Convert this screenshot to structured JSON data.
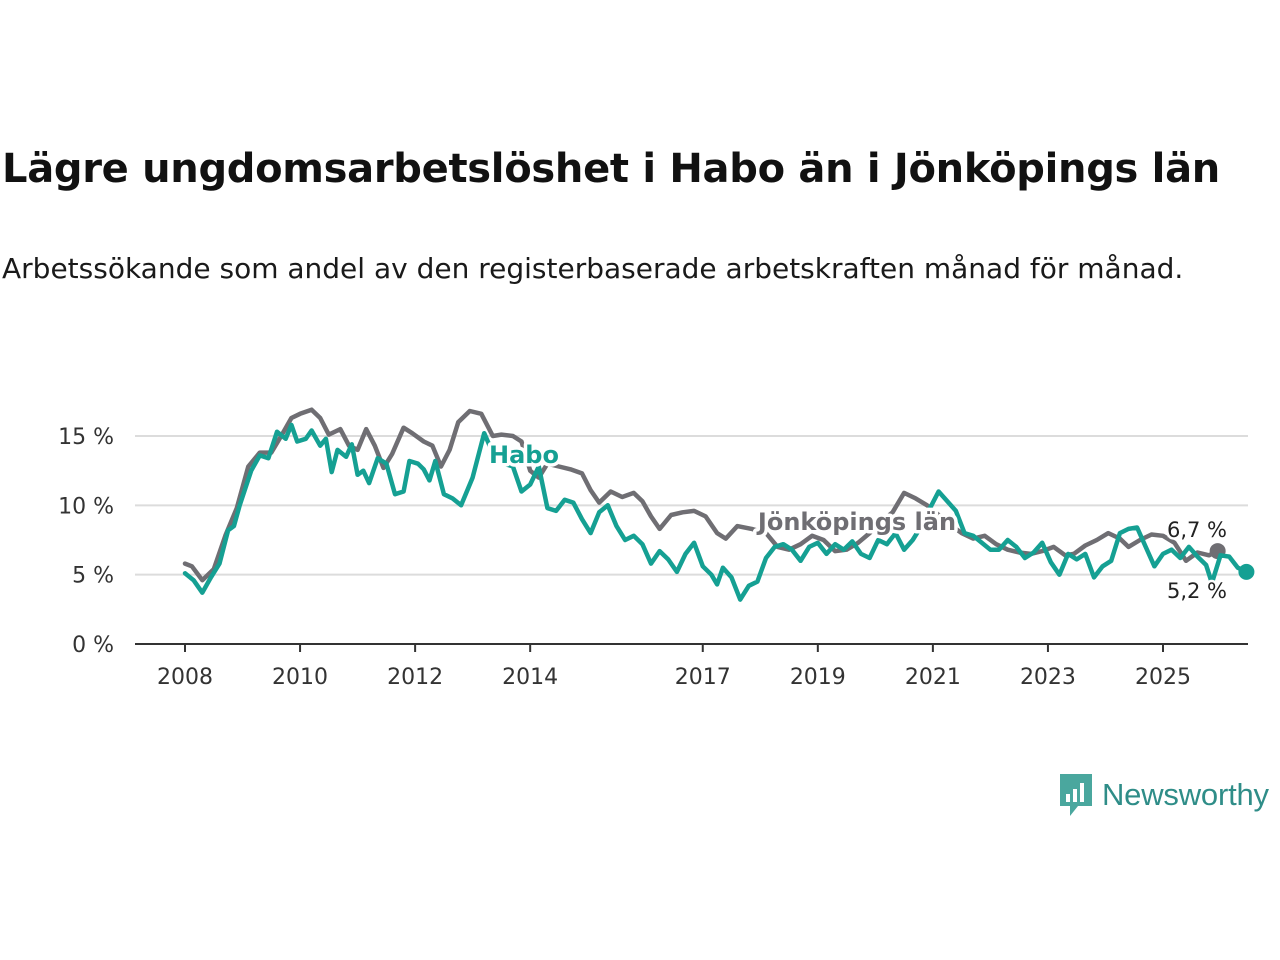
{
  "header": {
    "title": "Lägre ungdomsarbetslöshet i Habo än i Jönköpings län",
    "subtitle": "Arbetssökande som andel av den registerbaserade arbetskraften månad för månad."
  },
  "brand": {
    "name": "Newsworthy",
    "color": "#2f8d88"
  },
  "chart_data": {
    "type": "line",
    "title": "Lägre ungdomsarbetslöshet i Habo än i Jönköpings län",
    "subtitle": "Arbetssökande som andel av den registerbaserade arbetskraften månad för månad.",
    "xlabel": "",
    "ylabel": "",
    "ylim": [
      0,
      17
    ],
    "xlim": [
      2008.0,
      2026.1
    ],
    "grid": true,
    "yticks": [
      0,
      5,
      10,
      15
    ],
    "ytick_labels": [
      "0 %",
      "5 %",
      "10 %",
      "15 %"
    ],
    "xticks": [
      2008,
      2010,
      2012,
      2014,
      2017,
      2019,
      2021,
      2023,
      2025
    ],
    "xtick_labels": [
      "2008",
      "2010",
      "2012",
      "2014",
      "2017",
      "2019",
      "2021",
      "2023",
      "2025"
    ],
    "series": [
      {
        "name": "Jönköpings län",
        "color": "#6f6e73",
        "end_label": "6,7 %",
        "points": [
          [
            2008.0,
            5.8
          ],
          [
            2008.12,
            5.6
          ],
          [
            2008.3,
            4.6
          ],
          [
            2008.5,
            5.4
          ],
          [
            2008.7,
            7.8
          ],
          [
            2008.9,
            9.8
          ],
          [
            2009.1,
            12.8
          ],
          [
            2009.3,
            13.8
          ],
          [
            2009.5,
            13.8
          ],
          [
            2009.7,
            15.2
          ],
          [
            2009.85,
            16.3
          ],
          [
            2010.0,
            16.6
          ],
          [
            2010.2,
            16.9
          ],
          [
            2010.35,
            16.3
          ],
          [
            2010.5,
            15.1
          ],
          [
            2010.7,
            15.5
          ],
          [
            2010.85,
            14.3
          ],
          [
            2011.0,
            14.0
          ],
          [
            2011.15,
            15.5
          ],
          [
            2011.3,
            14.3
          ],
          [
            2011.45,
            12.7
          ],
          [
            2011.6,
            13.7
          ],
          [
            2011.8,
            15.6
          ],
          [
            2011.95,
            15.2
          ],
          [
            2012.15,
            14.6
          ],
          [
            2012.3,
            14.3
          ],
          [
            2012.45,
            12.8
          ],
          [
            2012.6,
            14.0
          ],
          [
            2012.75,
            16.0
          ],
          [
            2012.95,
            16.8
          ],
          [
            2013.15,
            16.6
          ],
          [
            2013.35,
            15.0
          ],
          [
            2013.5,
            15.1
          ],
          [
            2013.7,
            15.0
          ],
          [
            2013.85,
            14.6
          ],
          [
            2014.0,
            12.5
          ],
          [
            2014.15,
            12.0
          ],
          [
            2014.3,
            13.0
          ],
          [
            2014.5,
            12.8
          ],
          [
            2014.7,
            12.6
          ],
          [
            2014.9,
            12.3
          ],
          [
            2015.05,
            11.1
          ],
          [
            2015.2,
            10.2
          ],
          [
            2015.4,
            11.0
          ],
          [
            2015.6,
            10.6
          ],
          [
            2015.8,
            10.9
          ],
          [
            2015.95,
            10.3
          ],
          [
            2016.1,
            9.2
          ],
          [
            2016.25,
            8.3
          ],
          [
            2016.45,
            9.3
          ],
          [
            2016.65,
            9.5
          ],
          [
            2016.85,
            9.6
          ],
          [
            2017.05,
            9.2
          ],
          [
            2017.25,
            8.0
          ],
          [
            2017.4,
            7.6
          ],
          [
            2017.6,
            8.5
          ],
          [
            2017.85,
            8.3
          ],
          [
            2018.1,
            8.0
          ],
          [
            2018.3,
            7.0
          ],
          [
            2018.5,
            6.8
          ],
          [
            2018.7,
            7.2
          ],
          [
            2018.9,
            7.8
          ],
          [
            2019.1,
            7.5
          ],
          [
            2019.3,
            6.7
          ],
          [
            2019.5,
            6.8
          ],
          [
            2019.7,
            7.3
          ],
          [
            2019.9,
            8.0
          ],
          [
            2020.1,
            8.8
          ],
          [
            2020.3,
            9.5
          ],
          [
            2020.5,
            10.9
          ],
          [
            2020.7,
            10.5
          ],
          [
            2020.9,
            10.0
          ],
          [
            2021.1,
            9.3
          ],
          [
            2021.3,
            8.6
          ],
          [
            2021.5,
            8.0
          ],
          [
            2021.7,
            7.6
          ],
          [
            2021.9,
            7.8
          ],
          [
            2022.1,
            7.2
          ],
          [
            2022.3,
            6.8
          ],
          [
            2022.5,
            6.6
          ],
          [
            2022.7,
            6.5
          ],
          [
            2022.9,
            6.7
          ],
          [
            2023.1,
            7.0
          ],
          [
            2023.3,
            6.4
          ],
          [
            2023.45,
            6.5
          ],
          [
            2023.65,
            7.1
          ],
          [
            2023.85,
            7.5
          ],
          [
            2024.05,
            8.0
          ],
          [
            2024.25,
            7.6
          ],
          [
            2024.4,
            7.0
          ],
          [
            2024.6,
            7.5
          ],
          [
            2024.8,
            7.9
          ],
          [
            2025.0,
            7.8
          ],
          [
            2025.2,
            7.3
          ],
          [
            2025.4,
            6.0
          ],
          [
            2025.6,
            6.6
          ],
          [
            2025.8,
            6.4
          ],
          [
            2025.95,
            6.7
          ]
        ]
      },
      {
        "name": "Habo",
        "color": "#15a093",
        "end_label": "5,2 %",
        "points": [
          [
            2008.0,
            5.1
          ],
          [
            2008.15,
            4.6
          ],
          [
            2008.3,
            3.7
          ],
          [
            2008.45,
            4.8
          ],
          [
            2008.6,
            5.8
          ],
          [
            2008.75,
            8.2
          ],
          [
            2008.85,
            8.5
          ],
          [
            2008.95,
            10.0
          ],
          [
            2009.15,
            12.5
          ],
          [
            2009.3,
            13.6
          ],
          [
            2009.45,
            13.4
          ],
          [
            2009.6,
            15.3
          ],
          [
            2009.75,
            14.8
          ],
          [
            2009.85,
            15.8
          ],
          [
            2009.95,
            14.6
          ],
          [
            2010.1,
            14.8
          ],
          [
            2010.2,
            15.4
          ],
          [
            2010.35,
            14.3
          ],
          [
            2010.45,
            14.8
          ],
          [
            2010.55,
            12.4
          ],
          [
            2010.65,
            14.0
          ],
          [
            2010.8,
            13.5
          ],
          [
            2010.9,
            14.4
          ],
          [
            2011.0,
            12.2
          ],
          [
            2011.1,
            12.5
          ],
          [
            2011.2,
            11.6
          ],
          [
            2011.35,
            13.4
          ],
          [
            2011.5,
            13.0
          ],
          [
            2011.65,
            10.8
          ],
          [
            2011.8,
            11.0
          ],
          [
            2011.9,
            13.2
          ],
          [
            2012.05,
            13.0
          ],
          [
            2012.15,
            12.6
          ],
          [
            2012.25,
            11.8
          ],
          [
            2012.35,
            13.2
          ],
          [
            2012.5,
            10.8
          ],
          [
            2012.65,
            10.5
          ],
          [
            2012.8,
            10.0
          ],
          [
            2013.0,
            12.0
          ],
          [
            2013.2,
            15.2
          ],
          [
            2013.4,
            13.3
          ],
          [
            2013.55,
            13.0
          ],
          [
            2013.7,
            12.8
          ],
          [
            2013.85,
            11.0
          ],
          [
            2014.0,
            11.5
          ],
          [
            2014.15,
            12.8
          ],
          [
            2014.3,
            9.8
          ],
          [
            2014.45,
            9.6
          ],
          [
            2014.6,
            10.4
          ],
          [
            2014.75,
            10.2
          ],
          [
            2014.9,
            9.0
          ],
          [
            2015.05,
            8.0
          ],
          [
            2015.2,
            9.5
          ],
          [
            2015.35,
            10.0
          ],
          [
            2015.5,
            8.5
          ],
          [
            2015.65,
            7.5
          ],
          [
            2015.8,
            7.8
          ],
          [
            2015.95,
            7.2
          ],
          [
            2016.1,
            5.8
          ],
          [
            2016.25,
            6.7
          ],
          [
            2016.4,
            6.1
          ],
          [
            2016.55,
            5.2
          ],
          [
            2016.7,
            6.5
          ],
          [
            2016.85,
            7.3
          ],
          [
            2017.0,
            5.6
          ],
          [
            2017.15,
            5.0
          ],
          [
            2017.25,
            4.3
          ],
          [
            2017.35,
            5.5
          ],
          [
            2017.5,
            4.8
          ],
          [
            2017.65,
            3.2
          ],
          [
            2017.8,
            4.2
          ],
          [
            2017.95,
            4.5
          ],
          [
            2018.1,
            6.2
          ],
          [
            2018.25,
            7.0
          ],
          [
            2018.4,
            7.2
          ],
          [
            2018.55,
            6.8
          ],
          [
            2018.7,
            6.0
          ],
          [
            2018.85,
            7.0
          ],
          [
            2019.0,
            7.3
          ],
          [
            2019.15,
            6.5
          ],
          [
            2019.3,
            7.2
          ],
          [
            2019.45,
            6.8
          ],
          [
            2019.6,
            7.4
          ],
          [
            2019.75,
            6.5
          ],
          [
            2019.9,
            6.2
          ],
          [
            2020.05,
            7.5
          ],
          [
            2020.2,
            7.2
          ],
          [
            2020.35,
            8.0
          ],
          [
            2020.5,
            6.8
          ],
          [
            2020.65,
            7.5
          ],
          [
            2020.8,
            8.5
          ],
          [
            2020.95,
            9.8
          ],
          [
            2021.1,
            11.0
          ],
          [
            2021.25,
            10.3
          ],
          [
            2021.4,
            9.6
          ],
          [
            2021.55,
            8.0
          ],
          [
            2021.7,
            7.8
          ],
          [
            2021.85,
            7.3
          ],
          [
            2022.0,
            6.8
          ],
          [
            2022.15,
            6.8
          ],
          [
            2022.3,
            7.5
          ],
          [
            2022.45,
            7.0
          ],
          [
            2022.6,
            6.2
          ],
          [
            2022.75,
            6.6
          ],
          [
            2022.9,
            7.3
          ],
          [
            2023.05,
            5.9
          ],
          [
            2023.2,
            5.0
          ],
          [
            2023.35,
            6.5
          ],
          [
            2023.5,
            6.1
          ],
          [
            2023.65,
            6.5
          ],
          [
            2023.8,
            4.8
          ],
          [
            2023.95,
            5.6
          ],
          [
            2024.1,
            6.0
          ],
          [
            2024.25,
            8.0
          ],
          [
            2024.4,
            8.3
          ],
          [
            2024.55,
            8.4
          ],
          [
            2024.7,
            7.0
          ],
          [
            2024.85,
            5.6
          ],
          [
            2025.0,
            6.5
          ],
          [
            2025.15,
            6.8
          ],
          [
            2025.3,
            6.2
          ],
          [
            2025.45,
            7.0
          ],
          [
            2025.6,
            6.3
          ],
          [
            2025.75,
            5.7
          ],
          [
            2025.85,
            4.4
          ],
          [
            2026.0,
            6.4
          ],
          [
            2026.15,
            6.3
          ],
          [
            2026.3,
            5.5
          ],
          [
            2026.45,
            5.2
          ]
        ]
      }
    ]
  }
}
